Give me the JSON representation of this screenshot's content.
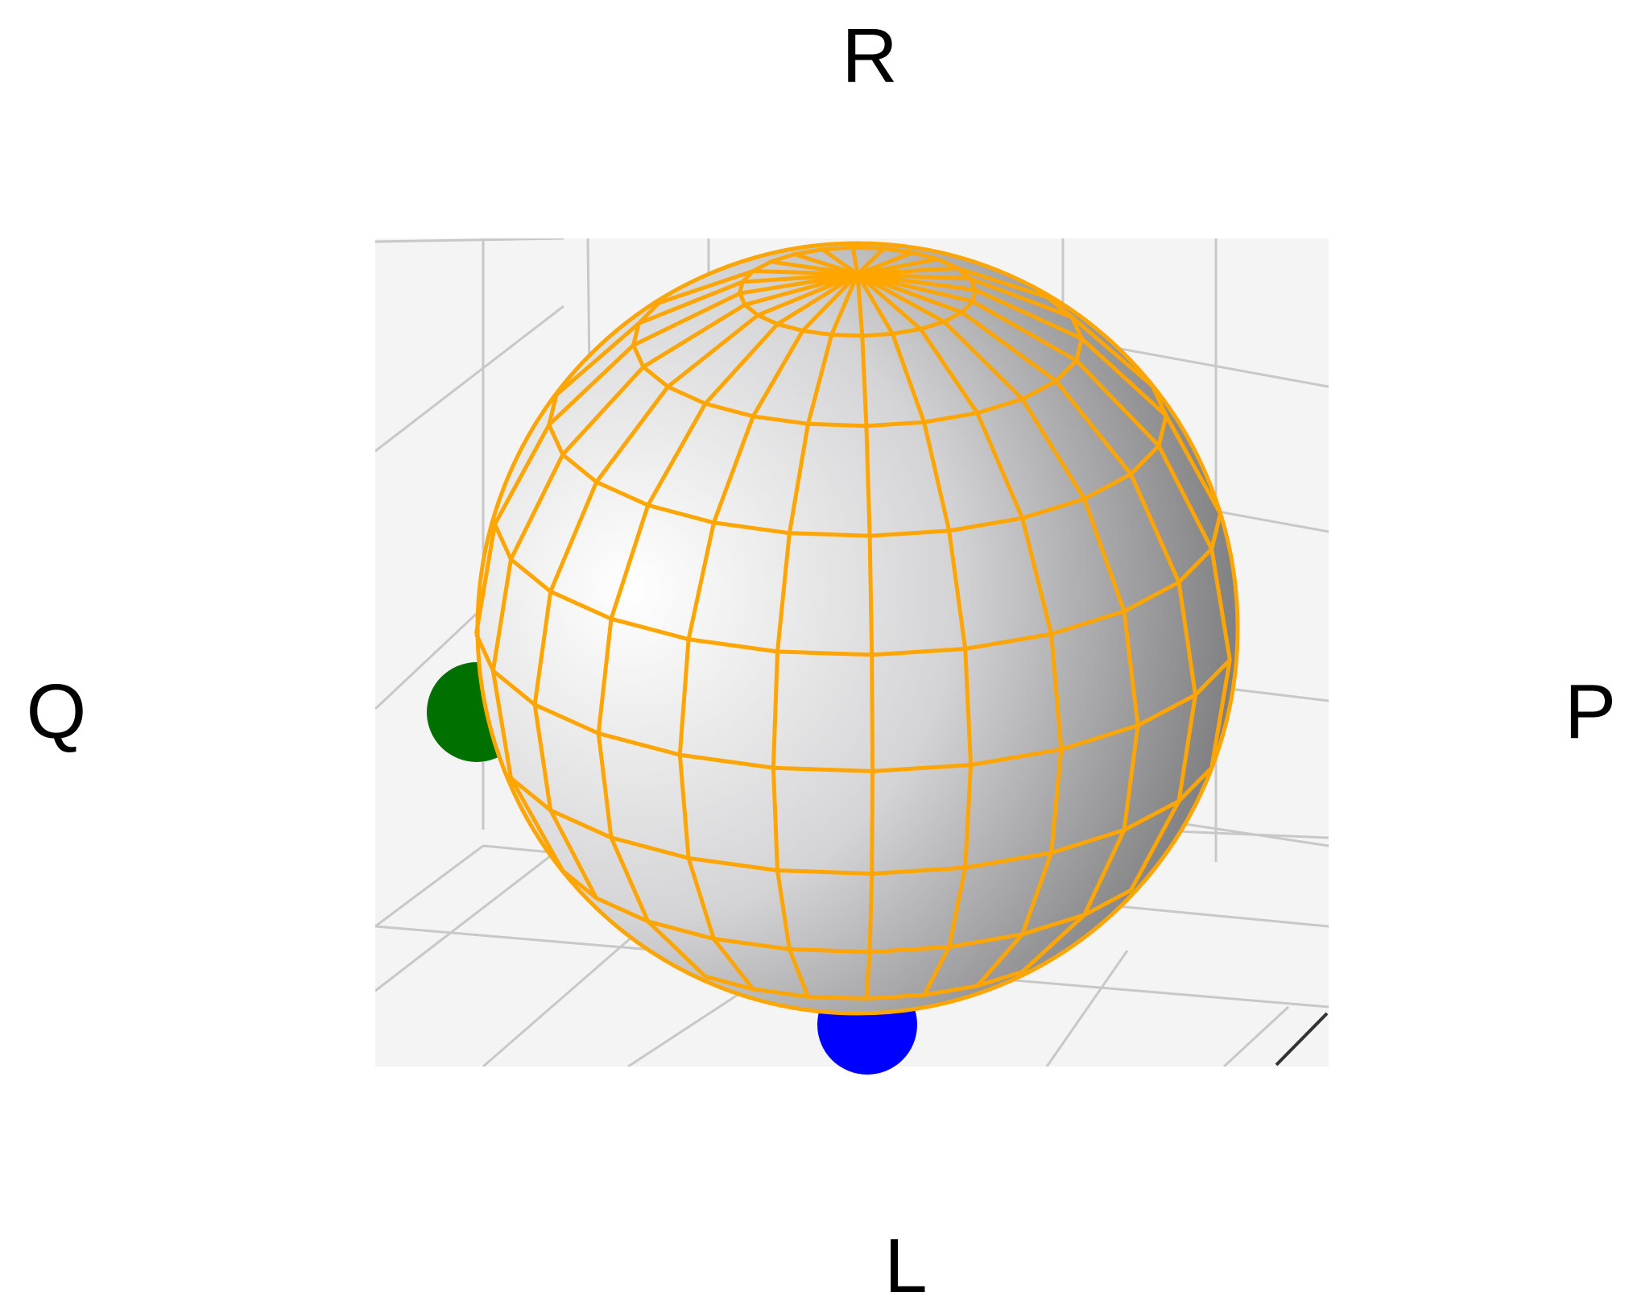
{
  "labels": {
    "top": "R",
    "left": "Q",
    "right": "P",
    "bottom": "L"
  },
  "colors": {
    "wireframe": "#FFA500",
    "left_marker": "#007000",
    "bottom_marker": "#0000FF",
    "plot_background": "#F4F4F4",
    "grid": "#C8C8C8"
  },
  "sphere": {
    "meridians": 24,
    "parallels": 10
  }
}
